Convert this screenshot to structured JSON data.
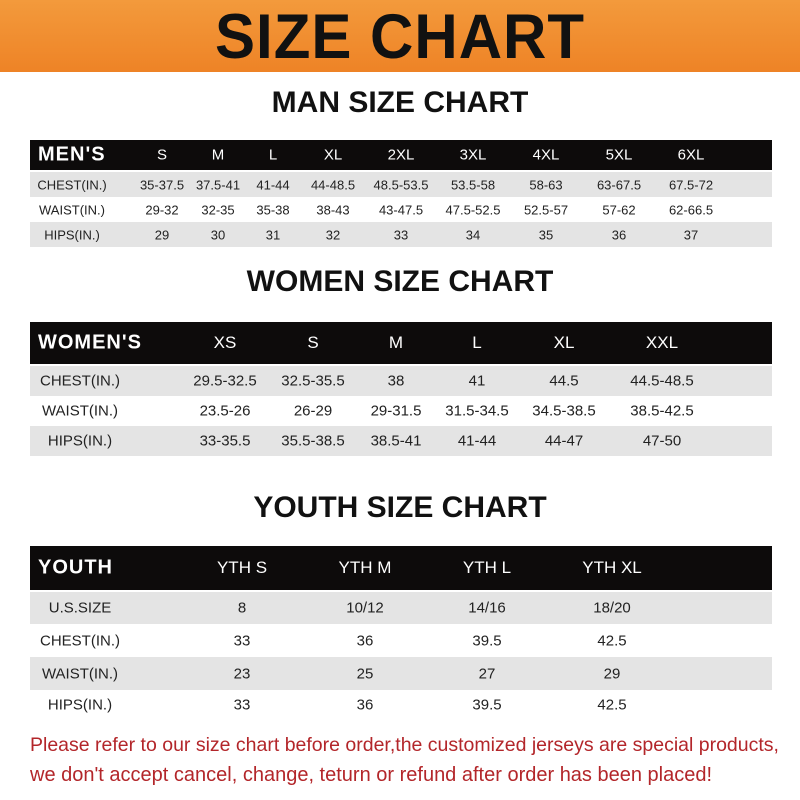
{
  "title": "SIZE CHART",
  "colors": {
    "banner": "#ee8326",
    "header_row": "#0d0b0b",
    "stripe": "#e4e4e4",
    "note": "#b3262a"
  },
  "men": {
    "title": "MAN SIZE CHART",
    "header": "MEN'S",
    "sizes": [
      "S",
      "M",
      "L",
      "XL",
      "2XL",
      "3XL",
      "4XL",
      "5XL",
      "6XL"
    ],
    "rows": [
      {
        "label": "CHEST(IN.)",
        "values": [
          "35-37.5",
          "37.5-41",
          "41-44",
          "44-48.5",
          "48.5-53.5",
          "53.5-58",
          "58-63",
          "63-67.5",
          "67.5-72"
        ]
      },
      {
        "label": "WAIST(IN.)",
        "values": [
          "29-32",
          "32-35",
          "35-38",
          "38-43",
          "43-47.5",
          "47.5-52.5",
          "52.5-57",
          "57-62",
          "62-66.5"
        ]
      },
      {
        "label": "HIPS(IN.)",
        "values": [
          "29",
          "30",
          "31",
          "32",
          "33",
          "34",
          "35",
          "36",
          "37"
        ]
      }
    ]
  },
  "women": {
    "title": "WOMEN SIZE CHART",
    "header": "WOMEN'S",
    "sizes": [
      "XS",
      "S",
      "M",
      "L",
      "XL",
      "XXL"
    ],
    "rows": [
      {
        "label": "CHEST(IN.)",
        "values": [
          "29.5-32.5",
          "32.5-35.5",
          "38",
          "41",
          "44.5",
          "44.5-48.5"
        ]
      },
      {
        "label": "WAIST(IN.)",
        "values": [
          "23.5-26",
          "26-29",
          "29-31.5",
          "31.5-34.5",
          "34.5-38.5",
          "38.5-42.5"
        ]
      },
      {
        "label": "HIPS(IN.)",
        "values": [
          "33-35.5",
          "35.5-38.5",
          "38.5-41",
          "41-44",
          "44-47",
          "47-50"
        ]
      }
    ]
  },
  "youth": {
    "title": "YOUTH SIZE CHART",
    "header": "YOUTH",
    "sizes": [
      "YTH S",
      "YTH M",
      "YTH L",
      "YTH XL"
    ],
    "rows": [
      {
        "label": "U.S.SIZE",
        "values": [
          "8",
          "10/12",
          "14/16",
          "18/20"
        ]
      },
      {
        "label": "CHEST(IN.)",
        "values": [
          "33",
          "36",
          "39.5",
          "42.5"
        ]
      },
      {
        "label": "WAIST(IN.)",
        "values": [
          "23",
          "25",
          "27",
          "29"
        ]
      },
      {
        "label": "HIPS(IN.)",
        "values": [
          "33",
          "36",
          "39.5",
          "42.5"
        ]
      }
    ]
  },
  "notice": {
    "line1": "Please refer to our size chart before order,the customized jerseys are special products,",
    "line2": "we don't accept cancel, change, teturn or refund after order has been placed!"
  }
}
